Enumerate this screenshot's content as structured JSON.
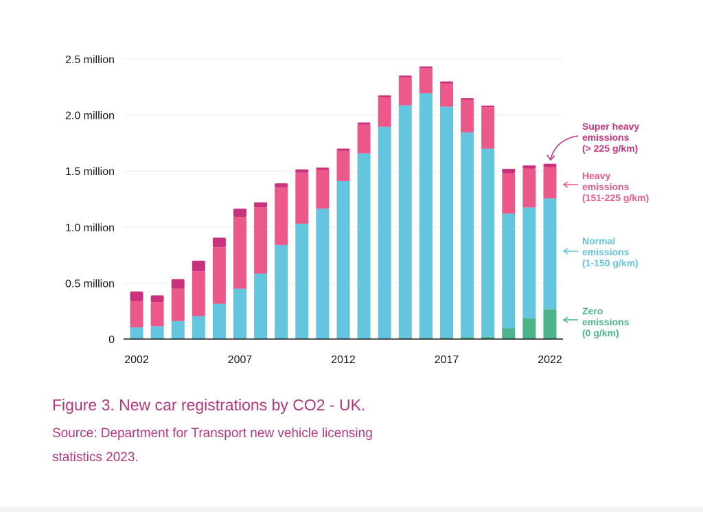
{
  "chart_data": {
    "type": "bar",
    "stacked": true,
    "x": [
      2002,
      2003,
      2004,
      2005,
      2006,
      2007,
      2008,
      2009,
      2010,
      2011,
      2012,
      2013,
      2014,
      2015,
      2016,
      2017,
      2018,
      2019,
      2020,
      2021,
      2022
    ],
    "x_tick_labels": [
      "2002",
      "2007",
      "2012",
      "2017",
      "2022"
    ],
    "y_tick_labels": [
      "0",
      "0.5 million",
      "1.0 million",
      "1.5 million",
      "2.0 million",
      "2.5 million"
    ],
    "ylim": [
      0,
      2500000
    ],
    "grid": true,
    "legend_placement": "right, aligned to series",
    "series": [
      {
        "name": "Zero emissions (0 g/km)",
        "color": "#4db38a",
        "values": [
          0,
          0,
          0,
          0,
          0,
          0,
          0,
          0,
          0,
          0,
          0,
          3000,
          5000,
          7000,
          9000,
          12000,
          15000,
          20000,
          95000,
          185000,
          265000
        ]
      },
      {
        "name": "Normal emissions (1-150 g/km)",
        "color": "#63c5de",
        "values": [
          105000,
          115000,
          160000,
          205000,
          315000,
          450000,
          585000,
          840000,
          1030000,
          1165000,
          1410000,
          1655000,
          1890000,
          2080000,
          2185000,
          2063000,
          1830000,
          1680000,
          1025000,
          990000,
          990000
        ]
      },
      {
        "name": "Heavy emissions (151-225 g/km)",
        "color": "#ec5889",
        "values": [
          235000,
          215000,
          290000,
          400000,
          505000,
          640000,
          590000,
          515000,
          455000,
          345000,
          270000,
          255000,
          265000,
          250000,
          225000,
          205000,
          290000,
          370000,
          360000,
          345000,
          280000
        ]
      },
      {
        "name": "Super heavy emissions (> 225 g/km)",
        "color": "#c9327c",
        "values": [
          85000,
          60000,
          85000,
          95000,
          85000,
          75000,
          45000,
          35000,
          30000,
          20000,
          20000,
          20000,
          15000,
          15000,
          15000,
          20000,
          15000,
          15000,
          40000,
          30000,
          30000
        ]
      }
    ],
    "legend": [
      {
        "lines": [
          "Super heavy",
          "emissions",
          "(> 225 g/km)"
        ],
        "color": "#c9327c"
      },
      {
        "lines": [
          "Heavy",
          "emissions",
          "(151-225 g/km)"
        ],
        "color": "#ec5889"
      },
      {
        "lines": [
          "Normal",
          "emissions",
          "(1-150 g/km)"
        ],
        "color": "#63c5de"
      },
      {
        "lines": [
          "Zero",
          "emissions",
          "(0 g/km)"
        ],
        "color": "#4db38a"
      }
    ]
  },
  "caption": {
    "title": "Figure 3. New car registrations by CO2 - UK.",
    "source_line1": "Source: Department for Transport new vehicle licensing",
    "source_line2": "statistics 2023."
  }
}
